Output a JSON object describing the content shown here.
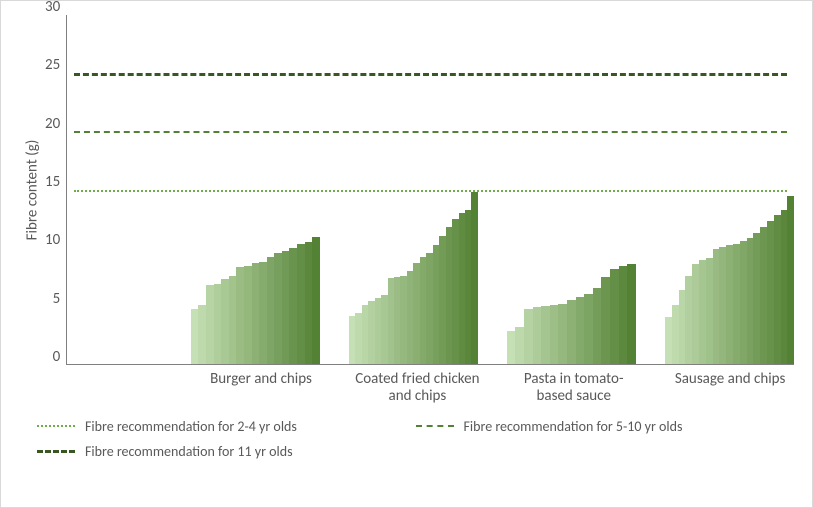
{
  "chart": {
    "type": "bar",
    "y_axis_label": "Fibre content (g)",
    "ylim": [
      0,
      30
    ],
    "ytick_step": 5,
    "y_tick_labels": [
      "30",
      "25",
      "20",
      "15",
      "10",
      "5",
      "0"
    ],
    "background_color": "#ffffff",
    "border_color": "#d9d9d9",
    "axis_line_color": "#808080",
    "text_color": "#595959",
    "label_fontsize": 15,
    "tick_fontsize": 15,
    "legend_fontsize": 14,
    "pre_gap_pct": 17,
    "group_gap_pct": 4,
    "group_width_pct": 17.75,
    "bar_gradient": {
      "start": "#c5e0b4",
      "end": "#548235"
    },
    "groups": [
      {
        "label": "Burger and chips",
        "values": [
          4.7,
          5.1,
          6.8,
          6.9,
          7.3,
          7.6,
          8.3,
          8.4,
          8.7,
          8.8,
          9.2,
          9.5,
          9.7,
          10.0,
          10.3,
          10.5,
          10.9
        ]
      },
      {
        "label": "Coated fried chicken and chips",
        "values": [
          4.1,
          4.4,
          5.1,
          5.4,
          5.7,
          5.9,
          7.4,
          7.5,
          7.6,
          8.0,
          8.7,
          9.2,
          9.5,
          10.2,
          11.0,
          11.8,
          12.5,
          13.0,
          13.2,
          14.8
        ]
      },
      {
        "label": "Pasta in tomato-based sauce",
        "values": [
          2.8,
          3.2,
          4.7,
          4.9,
          5.0,
          5.1,
          5.2,
          5.5,
          5.8,
          6.0,
          6.5,
          7.5,
          8.2,
          8.4,
          8.6
        ]
      },
      {
        "label": "Sausage and chips",
        "values": [
          4.0,
          5.1,
          6.4,
          7.6,
          8.6,
          8.9,
          9.1,
          9.9,
          10.1,
          10.2,
          10.3,
          10.6,
          10.8,
          11.3,
          11.8,
          12.3,
          12.8,
          13.2,
          14.4
        ]
      }
    ],
    "reference_lines": [
      {
        "value": 15,
        "label": "Fibre recommendation for 2-4 yr olds",
        "color": "#70ad47",
        "dash": "2 4",
        "stroke_width": 2,
        "css_border": "2.5px dotted #70ad47"
      },
      {
        "value": 20,
        "label": "Fibre recommendation for 5-10 yr olds",
        "color": "#548235",
        "dash": "7 5",
        "stroke_width": 2.5,
        "css_border": "2.5px dashed #548235"
      },
      {
        "value": 25,
        "label": "Fibre recommendation for 11 yr olds",
        "color": "#385723",
        "dash": "12 8",
        "stroke_width": 3,
        "css_border": "3px dashed #385723"
      }
    ]
  }
}
